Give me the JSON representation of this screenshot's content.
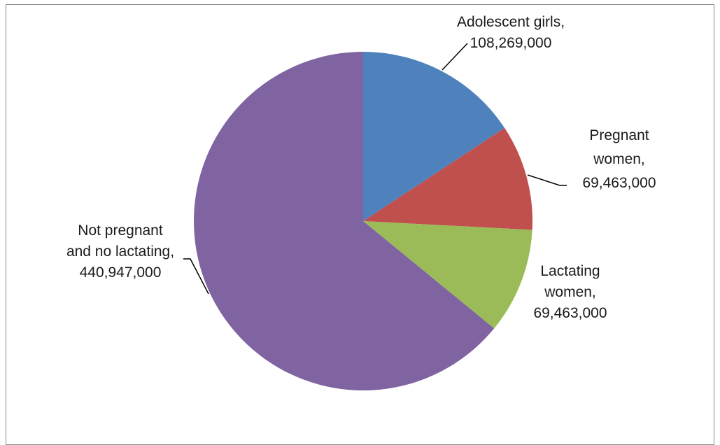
{
  "chart_data": {
    "type": "pie",
    "title": "",
    "start_angle_deg": 0,
    "direction": "clockwise",
    "series": [
      {
        "label_lines": [
          "Adolescent girls,",
          "108,269,000"
        ],
        "value": 108269000,
        "color": "#4F81BD"
      },
      {
        "label_lines": [
          "Pregnant",
          "women,",
          "69,463,000"
        ],
        "value": 69463000,
        "color": "#C0504D"
      },
      {
        "label_lines": [
          "Lactating",
          "women,",
          "69,463,000"
        ],
        "value": 69463000,
        "color": "#9BBB59"
      },
      {
        "label_lines": [
          "Not pregnant",
          "and no lactating,",
          "440,947,000"
        ],
        "value": 440947000,
        "color": "#8064A2"
      }
    ]
  }
}
